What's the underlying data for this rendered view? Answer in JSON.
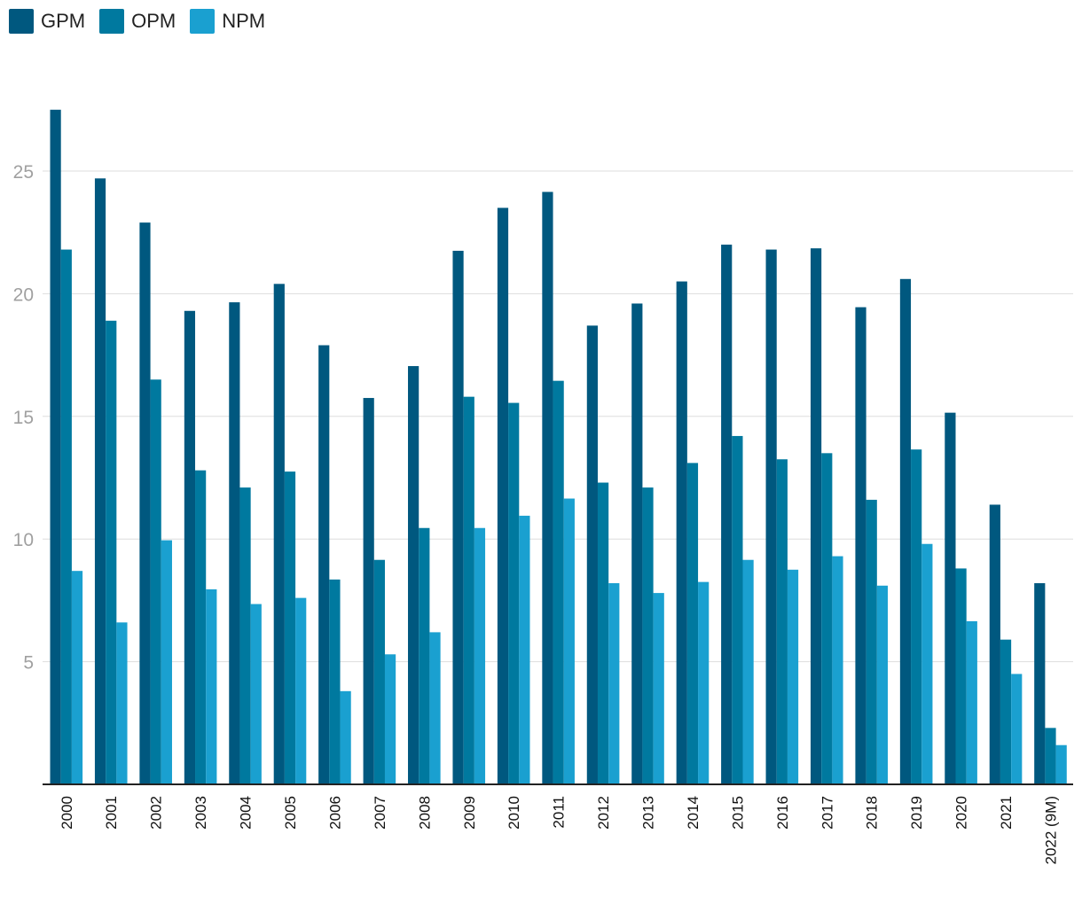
{
  "chart_data": {
    "type": "bar",
    "title": "",
    "xlabel": "",
    "ylabel": "",
    "categories": [
      "2000",
      "2001",
      "2002",
      "2003",
      "2004",
      "2005",
      "2006",
      "2007",
      "2008",
      "2009",
      "2010",
      "2011",
      "2012",
      "2013",
      "2014",
      "2015",
      "2016",
      "2017",
      "2018",
      "2019",
      "2020",
      "2021",
      "2022 (9M)"
    ],
    "series": [
      {
        "name": "GPM",
        "color": "#00587f",
        "values": [
          27.5,
          24.7,
          22.9,
          19.3,
          19.65,
          20.4,
          17.9,
          15.75,
          17.05,
          21.75,
          23.5,
          24.15,
          18.7,
          19.6,
          20.5,
          22.0,
          21.8,
          21.85,
          19.45,
          20.6,
          15.15,
          11.4,
          8.2
        ]
      },
      {
        "name": "OPM",
        "color": "#00799f",
        "values": [
          21.8,
          18.9,
          16.5,
          12.8,
          12.1,
          12.75,
          8.35,
          9.15,
          10.45,
          15.8,
          15.55,
          16.45,
          12.3,
          12.1,
          13.1,
          14.2,
          13.25,
          13.5,
          11.6,
          13.65,
          8.8,
          5.9,
          2.3
        ]
      },
      {
        "name": "NPM",
        "color": "#1aa0d0",
        "values": [
          8.7,
          6.6,
          9.95,
          7.95,
          7.35,
          7.6,
          3.8,
          5.3,
          6.2,
          10.45,
          10.95,
          11.65,
          8.2,
          7.8,
          8.25,
          9.15,
          8.75,
          9.3,
          8.1,
          9.8,
          6.65,
          4.5,
          1.6
        ]
      }
    ],
    "y_ticks": [
      5,
      10,
      15,
      20,
      25
    ],
    "ylim": [
      0,
      28.5
    ],
    "grid": true,
    "legend": "top-left"
  }
}
